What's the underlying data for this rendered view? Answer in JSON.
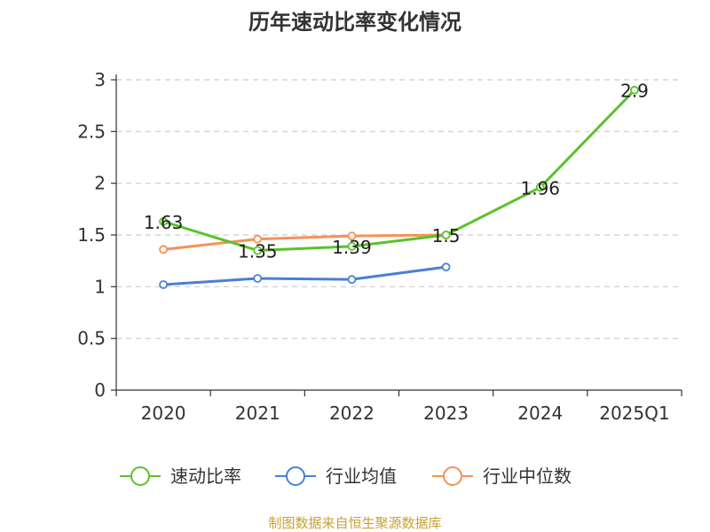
{
  "chart_data": {
    "type": "line",
    "title": "历年速动比率变化情况",
    "categories": [
      "2020",
      "2021",
      "2022",
      "2023",
      "2024",
      "2025Q1"
    ],
    "ylim": [
      0,
      3
    ],
    "yticks": [
      0,
      0.5,
      1,
      1.5,
      2,
      2.5,
      3
    ],
    "ytick_labels": [
      "0",
      "0.5",
      "1",
      "1.5",
      "2",
      "2.5",
      "3"
    ],
    "grid": true,
    "legend_position": "bottom",
    "series": [
      {
        "name": "速动比率",
        "color": "#5bc22b",
        "values": [
          1.63,
          1.35,
          1.39,
          1.5,
          1.96,
          2.9
        ],
        "labels": [
          "1.63",
          "1.35",
          "1.39",
          "1.5",
          "1.96",
          "2.9"
        ]
      },
      {
        "name": "行业均值",
        "color": "#4a7fd6",
        "values": [
          1.02,
          1.08,
          1.07,
          1.19,
          null,
          null
        ]
      },
      {
        "name": "行业中位数",
        "color": "#f39257",
        "values": [
          1.36,
          1.46,
          1.49,
          1.5,
          null,
          null
        ]
      }
    ]
  },
  "source": {
    "text": "制图数据来自恒生聚源数据库",
    "color": "#c8a032"
  }
}
